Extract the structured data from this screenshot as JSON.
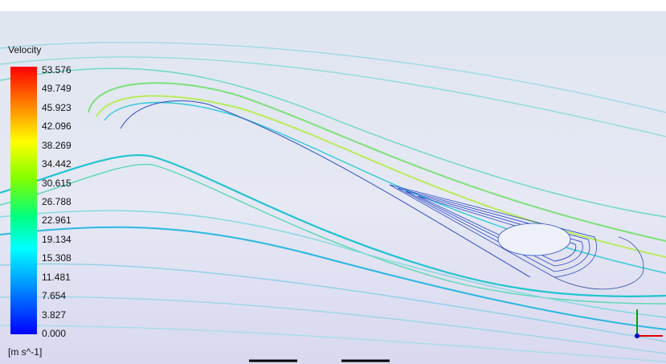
{
  "legend": {
    "title": "Velocity",
    "ticks": [
      "53.576",
      "49.749",
      "45.923",
      "42.096",
      "38.269",
      "34.442",
      "30.615",
      "26.788",
      "22.961",
      "19.134",
      "15.308",
      "11.481",
      "7.654",
      "3.827",
      "0.000"
    ],
    "unit": "[m s^-1]"
  }
}
